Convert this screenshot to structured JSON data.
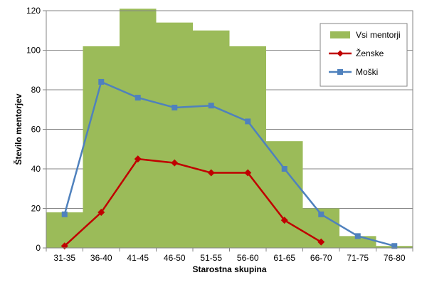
{
  "chart_data": {
    "type": "bar",
    "categories": [
      "31-35",
      "36-40",
      "41-45",
      "46-50",
      "51-55",
      "56-60",
      "61-65",
      "66-70",
      "71-75",
      "76-80"
    ],
    "xlabel": "Starostna skupina",
    "ylabel": "Število mentorjev",
    "ylim": [
      0,
      120
    ],
    "yticks": [
      0,
      20,
      40,
      60,
      80,
      100,
      120
    ],
    "grid": true,
    "legend_position": "top-right",
    "series": [
      {
        "name": "Vsi mentorji",
        "kind": "bar",
        "color": "#9bbb59",
        "values": [
          18,
          102,
          121,
          114,
          110,
          102,
          54,
          20,
          6,
          1
        ]
      },
      {
        "name": "Ženske",
        "kind": "line",
        "marker": "diamond",
        "color": "#c00000",
        "values": [
          1,
          18,
          45,
          43,
          38,
          38,
          14,
          3,
          null,
          null
        ]
      },
      {
        "name": "Moški",
        "kind": "line",
        "marker": "square",
        "color": "#4f81bd",
        "values": [
          17,
          84,
          76,
          71,
          72,
          64,
          40,
          17,
          6,
          1
        ]
      }
    ]
  }
}
